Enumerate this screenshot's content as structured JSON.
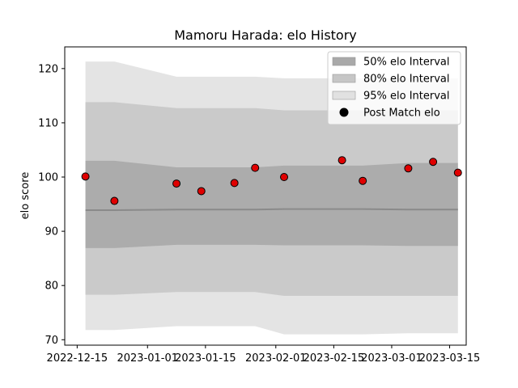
{
  "chart_data": {
    "type": "line",
    "title": "Mamoru Harada: elo History",
    "xlabel": "",
    "ylabel": "elo score",
    "x_type": "date",
    "xlim": [
      "2022-12-12",
      "2023-03-19"
    ],
    "ylim": [
      69,
      124
    ],
    "x_ticks": [
      "2022-12-15",
      "2023-01-01",
      "2023-01-15",
      "2023-02-01",
      "2023-02-15",
      "2023-03-01",
      "2023-03-15"
    ],
    "y_ticks": [
      70,
      80,
      90,
      100,
      110,
      120
    ],
    "grid": false,
    "legend_position": "top-right",
    "colors": {
      "band50": "#a9a9a9",
      "band80": "#c6c6c6",
      "band95": "#e1e1e1",
      "mean_line": "#8a8a8a",
      "point_fill": "#e00000",
      "point_edge": "#000000"
    },
    "x": [
      "2022-12-17",
      "2022-12-24",
      "2023-01-08",
      "2023-01-14",
      "2023-01-22",
      "2023-01-27",
      "2023-02-03",
      "2023-02-17",
      "2023-02-22",
      "2023-03-05",
      "2023-03-11",
      "2023-03-17"
    ],
    "series": [
      {
        "name": "Post Match elo",
        "kind": "scatter",
        "values": [
          100.1,
          95.6,
          98.8,
          97.4,
          98.9,
          101.7,
          100.0,
          103.1,
          99.3,
          101.6,
          102.8,
          100.8
        ]
      },
      {
        "name": "95% elo Interval",
        "kind": "band",
        "upper": [
          121.3,
          121.3,
          118.5,
          118.5,
          118.5,
          118.5,
          118.2,
          118.2,
          118.2,
          118.2,
          118.2,
          118.2
        ],
        "lower": [
          71.8,
          71.8,
          72.5,
          72.5,
          72.5,
          72.5,
          71.0,
          71.0,
          71.0,
          71.2,
          71.2,
          71.2
        ]
      },
      {
        "name": "80% elo Interval",
        "kind": "band",
        "upper": [
          113.8,
          113.8,
          112.7,
          112.7,
          112.7,
          112.7,
          112.3,
          112.3,
          112.3,
          112.3,
          112.3,
          112.3
        ],
        "lower": [
          78.3,
          78.3,
          78.8,
          78.8,
          78.8,
          78.8,
          78.1,
          78.1,
          78.1,
          78.1,
          78.1,
          78.1
        ]
      },
      {
        "name": "50% elo Interval",
        "kind": "band",
        "upper": [
          103.0,
          103.0,
          101.8,
          101.8,
          101.8,
          101.8,
          102.1,
          102.1,
          102.1,
          102.6,
          102.6,
          102.6
        ],
        "lower": [
          86.9,
          86.9,
          87.5,
          87.5,
          87.5,
          87.5,
          87.4,
          87.4,
          87.4,
          87.3,
          87.3,
          87.3
        ]
      },
      {
        "kind": "line",
        "values": [
          93.9,
          93.9,
          94.0,
          94.0,
          94.0,
          94.0,
          94.1,
          94.1,
          94.1,
          94.0,
          94.0,
          94.0
        ]
      }
    ],
    "legend": [
      {
        "label": "50% elo Interval",
        "kind": "band",
        "color": "#a9a9a9"
      },
      {
        "label": "80% elo Interval",
        "kind": "band",
        "color": "#c6c6c6"
      },
      {
        "label": "95% elo Interval",
        "kind": "band",
        "color": "#e1e1e1"
      },
      {
        "label": "Post Match elo",
        "kind": "marker",
        "color": "#000000"
      }
    ]
  }
}
